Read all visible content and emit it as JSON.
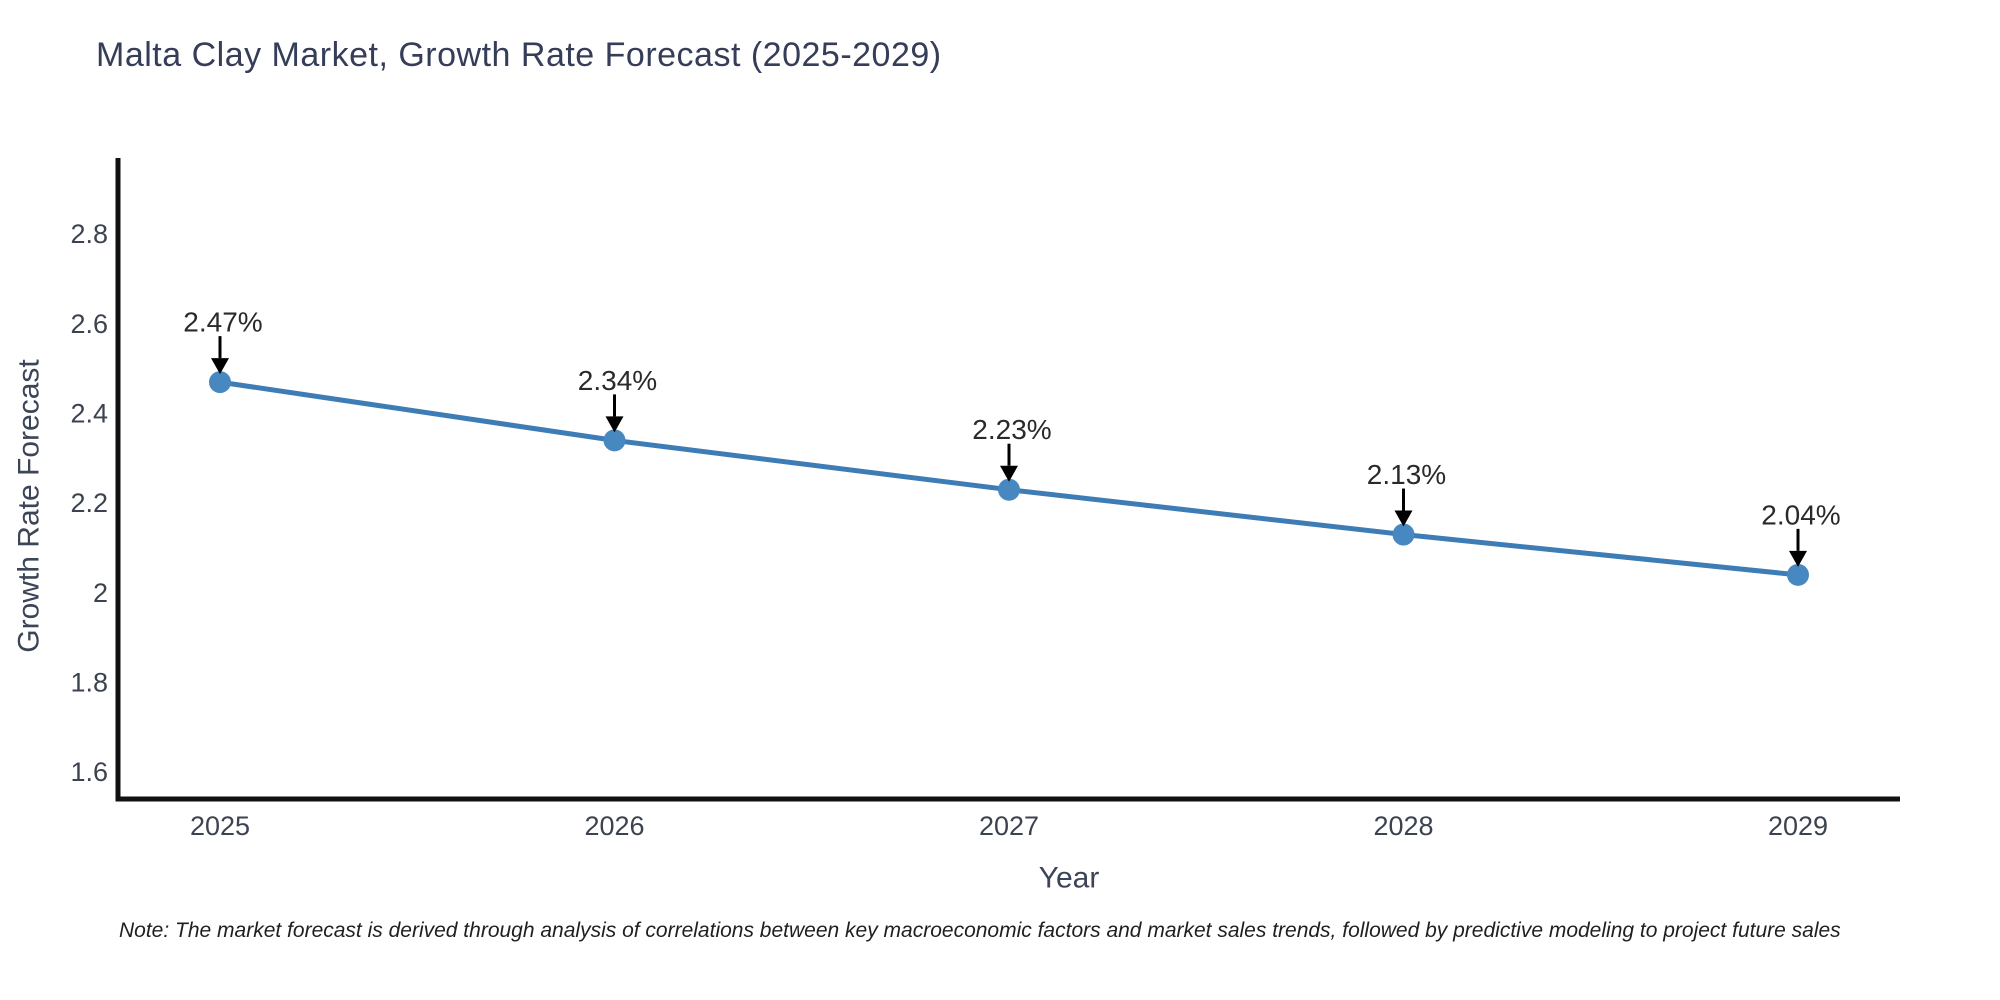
{
  "title": "Malta Clay Market, Growth Rate Forecast (2025-2029)",
  "note": "Note: The market forecast is derived through analysis of correlations between key macroeconomic factors and market sales trends, followed by predictive modeling to project future sales",
  "colors": {
    "line": "#3e7cb5",
    "marker": "#4788c0",
    "axis_line": "#111111",
    "tick_text": "#3c4350",
    "axis_title_text": "#3c4558",
    "title_text": "#353d59",
    "annotation_text": "#2a2a2a",
    "arrow": "#000000",
    "background": "#ffffff"
  },
  "chart_data": {
    "type": "line",
    "title": "Malta Clay Market, Growth Rate Forecast (2025-2029)",
    "xlabel": "Year",
    "ylabel": "Growth Rate Forecast",
    "x": [
      2025,
      2026,
      2027,
      2028,
      2029
    ],
    "xtick_labels": [
      "2025",
      "2026",
      "2027",
      "2028",
      "2029"
    ],
    "values": [
      2.47,
      2.34,
      2.23,
      2.13,
      2.04
    ],
    "point_labels": [
      "2.47%",
      "2.34%",
      "2.23%",
      "2.13%",
      "2.04%"
    ],
    "yticks": [
      1.6,
      1.8,
      2,
      2.2,
      2.4,
      2.6,
      2.8
    ],
    "ytick_labels": [
      "1.6",
      "1.8",
      "2",
      "2.2",
      "2.4",
      "2.6",
      "2.8"
    ],
    "ylim": [
      1.54,
      2.97
    ],
    "grid": false,
    "legend_position": "none",
    "marker": "circle",
    "annotation_style": "label-above-with-down-arrow",
    "unit": "%"
  }
}
